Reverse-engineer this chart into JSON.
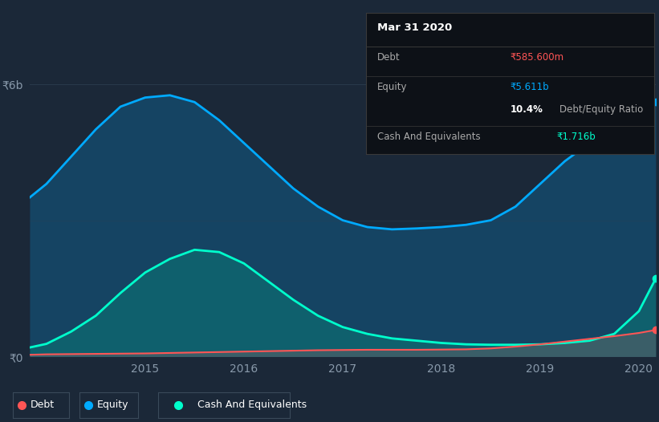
{
  "bg_color": "#1b2838",
  "plot_bg_color": "#1b2838",
  "grid_color": "#2d3f50",
  "ylabel_6b": "₹6b",
  "ylabel_0": "₹0",
  "years": [
    2013.83,
    2014.0,
    2014.25,
    2014.5,
    2014.75,
    2015.0,
    2015.25,
    2015.5,
    2015.75,
    2016.0,
    2016.25,
    2016.5,
    2016.75,
    2017.0,
    2017.25,
    2017.5,
    2017.75,
    2018.0,
    2018.25,
    2018.5,
    2018.75,
    2019.0,
    2019.25,
    2019.5,
    2019.75,
    2020.0,
    2020.17
  ],
  "equity": [
    3.5,
    3.8,
    4.4,
    5.0,
    5.5,
    5.7,
    5.75,
    5.6,
    5.2,
    4.7,
    4.2,
    3.7,
    3.3,
    3.0,
    2.85,
    2.8,
    2.82,
    2.85,
    2.9,
    3.0,
    3.3,
    3.8,
    4.3,
    4.7,
    5.1,
    5.5,
    5.611
  ],
  "cash": [
    0.2,
    0.28,
    0.55,
    0.9,
    1.4,
    1.85,
    2.15,
    2.35,
    2.3,
    2.05,
    1.65,
    1.25,
    0.9,
    0.65,
    0.5,
    0.4,
    0.35,
    0.3,
    0.27,
    0.26,
    0.26,
    0.27,
    0.3,
    0.35,
    0.5,
    1.0,
    1.716
  ],
  "debt": [
    0.04,
    0.05,
    0.055,
    0.06,
    0.065,
    0.07,
    0.08,
    0.09,
    0.1,
    0.11,
    0.12,
    0.13,
    0.14,
    0.145,
    0.15,
    0.15,
    0.15,
    0.155,
    0.16,
    0.18,
    0.22,
    0.27,
    0.33,
    0.39,
    0.45,
    0.52,
    0.5856
  ],
  "equity_color": "#00aaff",
  "cash_color": "#00ffcc",
  "debt_color": "#ff5555",
  "equity_fill_alpha": 0.22,
  "cash_fill_alpha": 0.28,
  "debt_fill_alpha": 0.18,
  "title": "Mar 31 2020",
  "tooltip_bg": "#0d1117",
  "tooltip_border": "#3a3a3a",
  "tooltip_text": "#aaaaaa",
  "tooltip_debt_val_color": "#ff5555",
  "tooltip_equity_val_color": "#00aaff",
  "tooltip_cash_val_color": "#00ffcc",
  "legend_labels": [
    "Debt",
    "Equity",
    "Cash And Equivalents"
  ],
  "x_tick_labels": [
    "2015",
    "2016",
    "2017",
    "2018",
    "2019",
    "2020"
  ],
  "x_tick_positions": [
    2015,
    2016,
    2017,
    2018,
    2019,
    2020
  ],
  "ylim": [
    0,
    6.5
  ],
  "xlim_start": 2013.83,
  "xlim_end": 2020.17
}
